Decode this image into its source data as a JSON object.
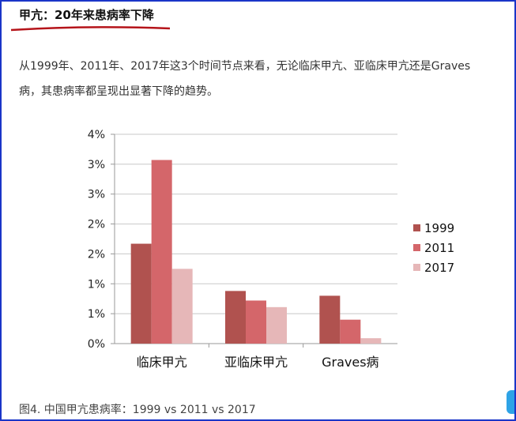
{
  "heading": {
    "title": "甲亢：20年来患病率下降"
  },
  "paragraph": {
    "line1": "从1999年、2011年、2017年这3个时间节点来看，无论临床甲亢、亚临床甲亢还是Graves",
    "line2": "病，其患病率都呈现出显著下降的趋势。"
  },
  "caption": "图4. 中国甲亢患病率：1999 vs 2011 vs 2017",
  "colors": {
    "frame": "#1a35c8",
    "underline": "#b5141a",
    "s1999": "#b0524f",
    "s2011": "#d4666a",
    "s2017": "#e6b7b8"
  },
  "chart_data": {
    "type": "bar",
    "title": "",
    "xlabel": "",
    "ylabel": "",
    "categories": [
      "临床甲亢",
      "亚临床甲亢",
      "Graves病"
    ],
    "series": [
      {
        "name": "1999",
        "color": "#b0524f",
        "values": [
          1.67,
          0.88,
          0.8
        ]
      },
      {
        "name": "2011",
        "color": "#d4666a",
        "values": [
          3.07,
          0.72,
          0.4
        ]
      },
      {
        "name": "2017",
        "color": "#e6b7b8",
        "values": [
          1.25,
          0.61,
          0.09
        ]
      }
    ],
    "ylim": [
      0,
      3.5
    ],
    "yticks": [
      0,
      0.5,
      1.0,
      1.5,
      2.0,
      2.5,
      3.0,
      3.5
    ],
    "ytick_labels": [
      "0%",
      "1%",
      "1%",
      "2%",
      "2%",
      "3%",
      "3%",
      "4%"
    ],
    "grid": true,
    "legend": "right"
  }
}
